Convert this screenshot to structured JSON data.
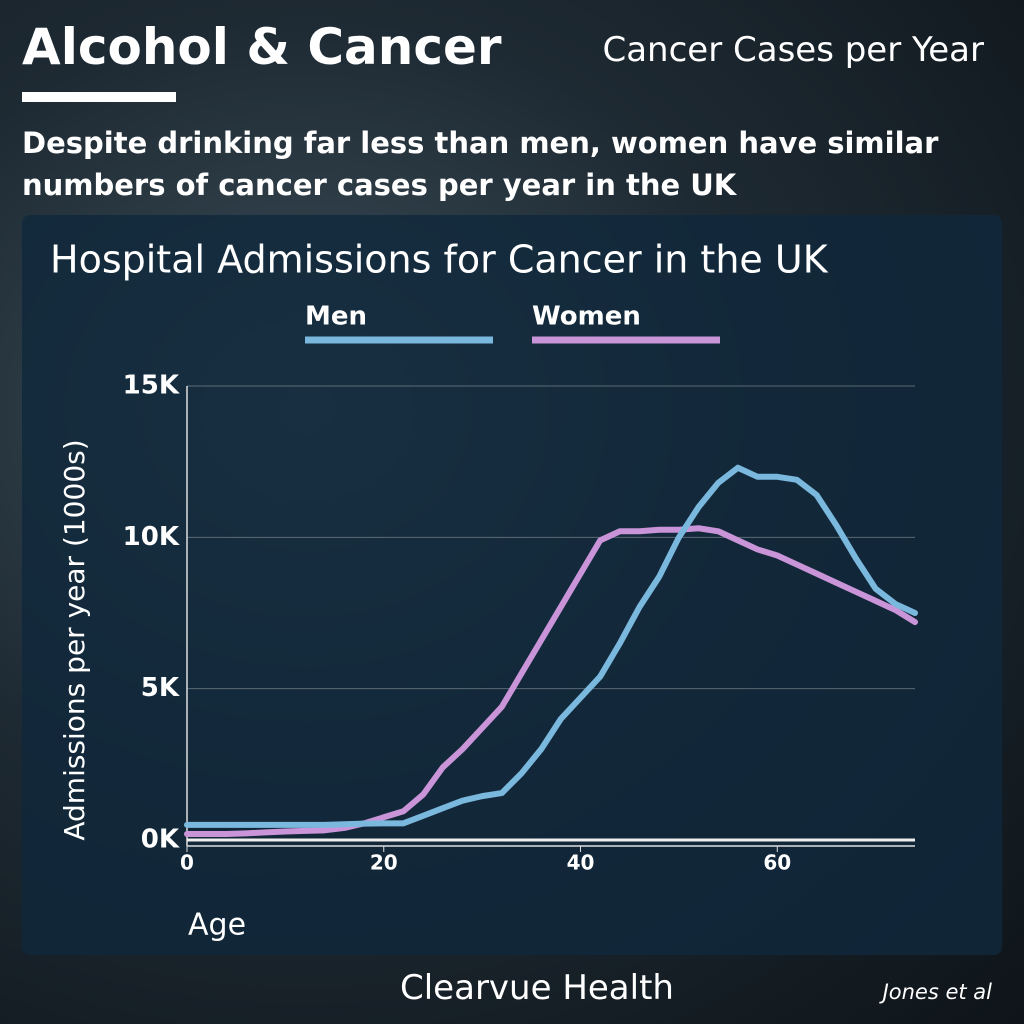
{
  "header": {
    "title": "Alcohol & Cancer",
    "tagline": "Cancer Cases per Year",
    "subtitle": "Despite drinking far less than men, women have similar numbers of cancer cases per year in the UK"
  },
  "chart_data": {
    "type": "line",
    "title": "Hospital Admissions for Cancer in the UK",
    "x_label": "Age",
    "y_label": "Admissions per year (1000s)",
    "x": [
      0,
      2,
      4,
      6,
      8,
      10,
      12,
      14,
      16,
      18,
      20,
      22,
      24,
      26,
      28,
      30,
      32,
      34,
      36,
      38,
      40,
      42,
      44,
      46,
      48,
      50,
      52,
      54,
      56,
      58,
      60,
      62,
      64,
      66,
      68,
      70,
      72,
      74
    ],
    "series": [
      {
        "name": "Men",
        "color": "#7ab8de",
        "values": [
          500,
          500,
          500,
          500,
          500,
          500,
          500,
          500,
          520,
          540,
          550,
          550,
          800,
          1050,
          1300,
          1450,
          1550,
          2200,
          3000,
          4000,
          4700,
          5400,
          6500,
          7700,
          8700,
          10000,
          11000,
          11800,
          12300,
          12000,
          12000,
          11900,
          11400,
          10400,
          9300,
          8300,
          7800,
          7500
        ]
      },
      {
        "name": "Women",
        "color": "#c994d8",
        "values": [
          200,
          200,
          200,
          220,
          250,
          280,
          300,
          320,
          400,
          550,
          750,
          950,
          1500,
          2400,
          3000,
          3700,
          4400,
          5500,
          6600,
          7700,
          8800,
          9900,
          10200,
          10200,
          10250,
          10250,
          10300,
          10200,
          9900,
          9600,
          9400,
          9100,
          8800,
          8500,
          8200,
          7900,
          7600,
          7200
        ]
      }
    ],
    "xlim": [
      0,
      74
    ],
    "ylim": [
      0,
      15000
    ],
    "xticks": [
      0,
      20,
      40,
      60
    ],
    "yticks": [
      {
        "value": 0,
        "label": "0K"
      },
      {
        "value": 5000,
        "label": "5K"
      },
      {
        "value": 10000,
        "label": "10K"
      },
      {
        "value": 15000,
        "label": "15K"
      }
    ],
    "grid": true
  },
  "footer": {
    "brand": "Clearvue Health",
    "source": "Jones et al"
  }
}
